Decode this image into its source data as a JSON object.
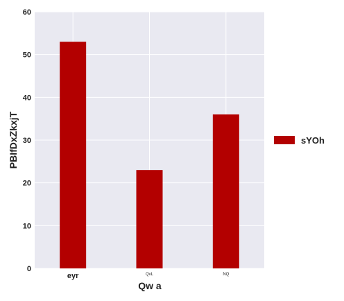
{
  "chart_data": {
    "type": "bar",
    "categories": [
      "eyr",
      "QvL",
      "NQ"
    ],
    "series": [
      {
        "name": "sYOh",
        "values": [
          53,
          23,
          36
        ],
        "color": "#b30000"
      }
    ],
    "xlabel": "Qw  a",
    "ylabel": "PBIfDxZkxjT",
    "ylim": [
      0,
      60
    ],
    "yticks": [
      0,
      10,
      20,
      30,
      40,
      50,
      60
    ],
    "grid": true,
    "background": "#e9e9f1",
    "legend_position": "right"
  }
}
